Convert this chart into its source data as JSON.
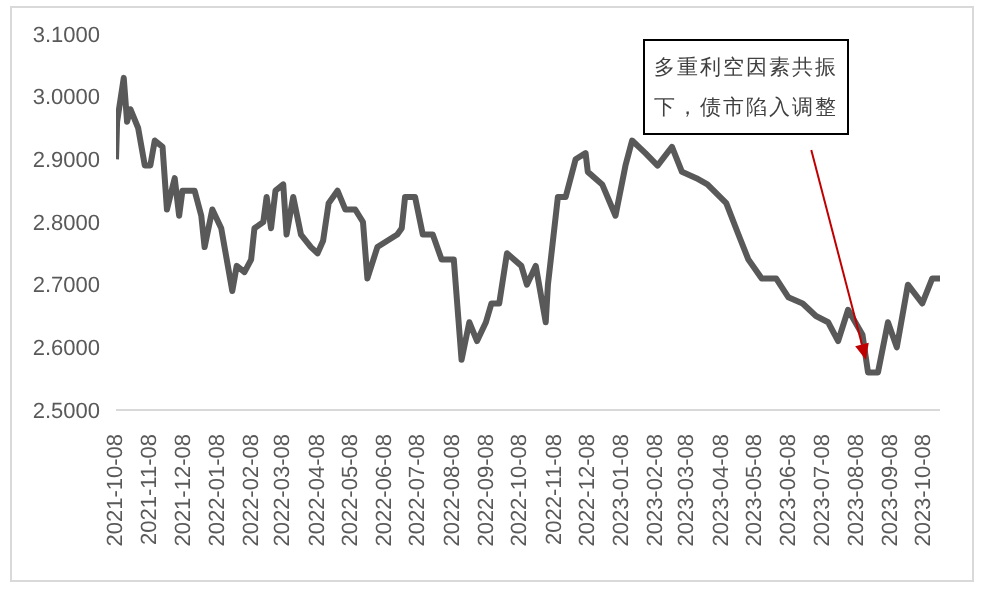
{
  "chart_data": {
    "type": "line",
    "x": [
      "2021-10-08",
      "2021-10-09",
      "2021-10-15",
      "2021-10-18",
      "2021-10-21",
      "2021-10-28",
      "2021-11-03",
      "2021-11-08",
      "2021-11-12",
      "2021-11-19",
      "2021-11-23",
      "2021-11-30",
      "2021-12-04",
      "2021-12-07",
      "2021-12-18",
      "2021-12-24",
      "2021-12-27",
      "2022-01-03",
      "2022-01-11",
      "2022-01-21",
      "2022-01-25",
      "2022-02-01",
      "2022-02-07",
      "2022-02-10",
      "2022-02-18",
      "2022-02-21",
      "2022-02-25",
      "2022-03-01",
      "2022-03-08",
      "2022-03-11",
      "2022-03-17",
      "2022-03-24",
      "2022-04-02",
      "2022-04-08",
      "2022-04-13",
      "2022-04-18",
      "2022-04-26",
      "2022-05-03",
      "2022-05-12",
      "2022-05-19",
      "2022-05-23",
      "2022-06-01",
      "2022-06-10",
      "2022-06-19",
      "2022-06-23",
      "2022-06-26",
      "2022-07-05",
      "2022-07-12",
      "2022-07-21",
      "2022-07-29",
      "2022-08-09",
      "2022-08-16",
      "2022-08-23",
      "2022-08-30",
      "2022-09-07",
      "2022-09-12",
      "2022-09-19",
      "2022-09-26",
      "2022-10-09",
      "2022-10-14",
      "2022-10-22",
      "2022-10-31",
      "2022-11-02",
      "2022-11-11",
      "2022-11-18",
      "2022-11-27",
      "2022-12-06",
      "2022-12-08",
      "2022-12-21",
      "2023-01-02",
      "2023-01-11",
      "2023-01-17",
      "2023-01-29",
      "2023-02-09",
      "2023-02-22",
      "2023-03-03",
      "2023-03-16",
      "2023-03-26",
      "2023-04-12",
      "2023-04-23",
      "2023-05-02",
      "2023-05-14",
      "2023-05-27",
      "2023-06-07",
      "2023-06-20",
      "2023-07-02",
      "2023-07-13",
      "2023-07-22",
      "2023-07-31",
      "2023-08-13",
      "2023-08-18",
      "2023-08-27",
      "2023-09-05",
      "2023-09-13",
      "2023-09-23",
      "2023-10-06",
      "2023-10-15",
      "2023-10-22"
    ],
    "series": [
      {
        "color": "#595959",
        "values": [
          2.9,
          2.96,
          3.03,
          2.96,
          2.98,
          2.95,
          2.89,
          2.89,
          2.93,
          2.92,
          2.82,
          2.87,
          2.81,
          2.85,
          2.85,
          2.81,
          2.76,
          2.82,
          2.79,
          2.69,
          2.73,
          2.72,
          2.74,
          2.79,
          2.8,
          2.84,
          2.79,
          2.85,
          2.86,
          2.78,
          2.84,
          2.78,
          2.76,
          2.75,
          2.77,
          2.83,
          2.85,
          2.82,
          2.82,
          2.8,
          2.71,
          2.76,
          2.77,
          2.78,
          2.79,
          2.84,
          2.84,
          2.78,
          2.78,
          2.74,
          2.74,
          2.58,
          2.64,
          2.61,
          2.64,
          2.67,
          2.67,
          2.75,
          2.73,
          2.7,
          2.73,
          2.64,
          2.7,
          2.84,
          2.84,
          2.9,
          2.91,
          2.88,
          2.86,
          2.81,
          2.89,
          2.93,
          2.91,
          2.89,
          2.92,
          2.88,
          2.87,
          2.86,
          2.83,
          2.78,
          2.74,
          2.71,
          2.71,
          2.68,
          2.67,
          2.65,
          2.64,
          2.61,
          2.66,
          2.62,
          2.56,
          2.56,
          2.64,
          2.6,
          2.7,
          2.67,
          2.71,
          2.71
        ]
      }
    ],
    "xlim": [
      "2021-10-08",
      "2023-10-22"
    ],
    "xticks": [
      "2021-10-08",
      "2021-11-08",
      "2021-12-08",
      "2022-01-08",
      "2022-02-08",
      "2022-03-08",
      "2022-04-08",
      "2022-05-08",
      "2022-06-08",
      "2022-07-08",
      "2022-08-08",
      "2022-09-08",
      "2022-10-08",
      "2022-11-08",
      "2022-12-08",
      "2023-01-08",
      "2023-02-08",
      "2023-03-08",
      "2023-04-08",
      "2023-05-08",
      "2023-06-08",
      "2023-07-08",
      "2023-08-08",
      "2023-09-08",
      "2023-10-08"
    ],
    "ylim": [
      2.5,
      3.1
    ],
    "yticks": [
      {
        "value": 2.5,
        "label": "2.5000"
      },
      {
        "value": 2.6,
        "label": "2.6000"
      },
      {
        "value": 2.7,
        "label": "2.7000"
      },
      {
        "value": 2.8,
        "label": "2.8000"
      },
      {
        "value": 2.9,
        "label": "2.9000"
      },
      {
        "value": 3.0,
        "label": "3.0000"
      },
      {
        "value": 3.1,
        "label": "3.1000"
      }
    ],
    "marker": "none",
    "annotations": [
      "多重利空因素共振下，债市陷入调整"
    ]
  }
}
